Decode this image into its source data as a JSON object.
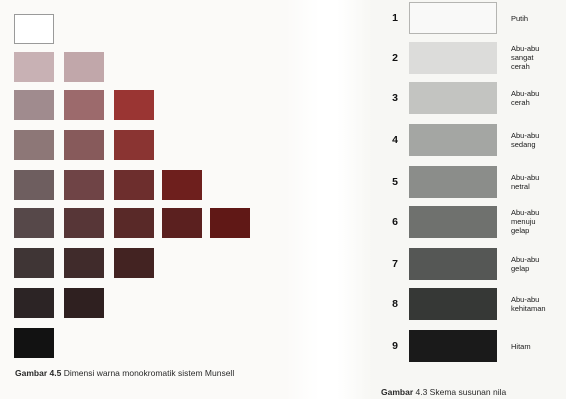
{
  "munsell": {
    "swatches": [
      {
        "color": "#ffffff"
      },
      {
        "color": "#c8b1b4"
      },
      {
        "color": "#c1a7aa"
      },
      {
        "color": "#a08b8e"
      },
      {
        "color": "#9c6a6c"
      },
      {
        "color": "#9a3533"
      },
      {
        "color": "#8d7777"
      },
      {
        "color": "#875a5b"
      },
      {
        "color": "#8a3432"
      },
      {
        "color": "#6e5e5f"
      },
      {
        "color": "#6f4446"
      },
      {
        "color": "#6d2e2d"
      },
      {
        "color": "#6e1f1d"
      },
      {
        "color": "#564849"
      },
      {
        "color": "#573637"
      },
      {
        "color": "#592928"
      },
      {
        "color": "#5b201f"
      },
      {
        "color": "#601816"
      },
      {
        "color": "#3f3535"
      },
      {
        "color": "#402b2b"
      },
      {
        "color": "#432322"
      },
      {
        "color": "#2c2425"
      },
      {
        "color": "#2f2020"
      },
      {
        "color": "#121212"
      }
    ],
    "caption_bold": "Gambar 4.5",
    "caption_text": "Dimensi warna monokromatik sistem Munsell"
  },
  "gray_scale": {
    "steps": [
      {
        "number": "1",
        "label": "Putih",
        "color": "#f9f9f8"
      },
      {
        "number": "2",
        "label": "Abu-abu sangat cerah",
        "color": "#dcdcda"
      },
      {
        "number": "3",
        "label": "Abu-abu cerah",
        "color": "#c3c4c1"
      },
      {
        "number": "4",
        "label": "Abu-abu sedang",
        "color": "#a4a6a3"
      },
      {
        "number": "5",
        "label": "Abu-abu netral",
        "color": "#8b8d8a"
      },
      {
        "number": "6",
        "label": "Abu-abu menuju gelap",
        "color": "#6f716e"
      },
      {
        "number": "7",
        "label": "Abu-abu gelap",
        "color": "#555755"
      },
      {
        "number": "8",
        "label": "Abu-abu kehitaman",
        "color": "#363836"
      },
      {
        "number": "9",
        "label": "Hitam",
        "color": "#1a1a1a"
      }
    ],
    "caption_bold": "Gambar",
    "caption_text": "4.3 Skema susunan nila"
  }
}
